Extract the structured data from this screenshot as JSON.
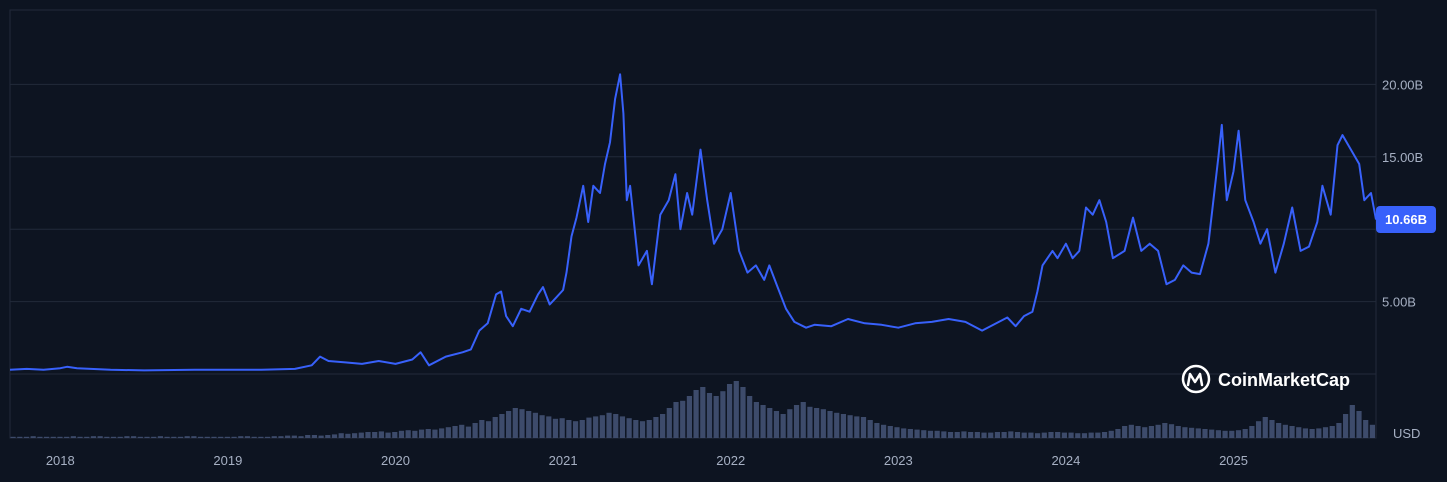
{
  "chart_data": {
    "type": "line",
    "currency_label": "USD",
    "last_value_label": "10.66B",
    "watermark": "CoinMarketCap",
    "x_ticks": [
      "2018",
      "2019",
      "2020",
      "2021",
      "2022",
      "2023",
      "2024",
      "2025"
    ],
    "y_ticks": [
      "5.00B",
      "10.00B",
      "15.00B",
      "20.00B"
    ],
    "y_tick_values": [
      5,
      10,
      15,
      20
    ],
    "ylim": [
      0,
      25
    ],
    "xlim": [
      2017.7,
      2025.85
    ],
    "grid": true,
    "colors": {
      "background": "#0d1421",
      "line": "#3861fb",
      "grid": "#222a3a",
      "axis_text": "#a6b0c3",
      "volume": "#3d4b6b",
      "tag": "#3861fb"
    },
    "series": [
      {
        "unit": "B USD",
        "points": [
          [
            2017.7,
            0.3
          ],
          [
            2017.8,
            0.35
          ],
          [
            2017.9,
            0.3
          ],
          [
            2018.0,
            0.4
          ],
          [
            2018.04,
            0.5
          ],
          [
            2018.1,
            0.4
          ],
          [
            2018.3,
            0.3
          ],
          [
            2018.5,
            0.25
          ],
          [
            2018.8,
            0.3
          ],
          [
            2019.0,
            0.3
          ],
          [
            2019.2,
            0.3
          ],
          [
            2019.4,
            0.35
          ],
          [
            2019.5,
            0.6
          ],
          [
            2019.55,
            1.2
          ],
          [
            2019.6,
            0.9
          ],
          [
            2019.7,
            0.8
          ],
          [
            2019.8,
            0.7
          ],
          [
            2019.9,
            0.9
          ],
          [
            2020.0,
            0.7
          ],
          [
            2020.1,
            1.0
          ],
          [
            2020.15,
            1.5
          ],
          [
            2020.2,
            0.6
          ],
          [
            2020.3,
            1.2
          ],
          [
            2020.4,
            1.5
          ],
          [
            2020.45,
            1.7
          ],
          [
            2020.5,
            3.0
          ],
          [
            2020.55,
            3.5
          ],
          [
            2020.6,
            5.5
          ],
          [
            2020.63,
            5.7
          ],
          [
            2020.66,
            4.0
          ],
          [
            2020.7,
            3.3
          ],
          [
            2020.75,
            4.5
          ],
          [
            2020.8,
            4.3
          ],
          [
            2020.85,
            5.5
          ],
          [
            2020.88,
            6.0
          ],
          [
            2020.92,
            4.8
          ],
          [
            2020.96,
            5.3
          ],
          [
            2021.0,
            5.8
          ],
          [
            2021.02,
            7.0
          ],
          [
            2021.05,
            9.5
          ],
          [
            2021.08,
            10.8
          ],
          [
            2021.12,
            13.0
          ],
          [
            2021.15,
            10.5
          ],
          [
            2021.18,
            13.0
          ],
          [
            2021.22,
            12.5
          ],
          [
            2021.25,
            14.5
          ],
          [
            2021.28,
            16.0
          ],
          [
            2021.31,
            19.0
          ],
          [
            2021.34,
            20.7
          ],
          [
            2021.36,
            18.0
          ],
          [
            2021.38,
            12.0
          ],
          [
            2021.4,
            13.0
          ],
          [
            2021.45,
            7.5
          ],
          [
            2021.5,
            8.5
          ],
          [
            2021.53,
            6.2
          ],
          [
            2021.58,
            11.0
          ],
          [
            2021.63,
            12.0
          ],
          [
            2021.67,
            13.8
          ],
          [
            2021.7,
            10.0
          ],
          [
            2021.74,
            12.5
          ],
          [
            2021.77,
            11.0
          ],
          [
            2021.82,
            15.5
          ],
          [
            2021.86,
            12.0
          ],
          [
            2021.9,
            9.0
          ],
          [
            2021.95,
            10.0
          ],
          [
            2022.0,
            12.5
          ],
          [
            2022.05,
            8.5
          ],
          [
            2022.1,
            7.0
          ],
          [
            2022.15,
            7.5
          ],
          [
            2022.2,
            6.5
          ],
          [
            2022.23,
            7.5
          ],
          [
            2022.28,
            6.0
          ],
          [
            2022.33,
            4.5
          ],
          [
            2022.38,
            3.6
          ],
          [
            2022.45,
            3.2
          ],
          [
            2022.5,
            3.4
          ],
          [
            2022.6,
            3.3
          ],
          [
            2022.7,
            3.8
          ],
          [
            2022.8,
            3.5
          ],
          [
            2022.9,
            3.4
          ],
          [
            2023.0,
            3.2
          ],
          [
            2023.1,
            3.5
          ],
          [
            2023.2,
            3.6
          ],
          [
            2023.3,
            3.8
          ],
          [
            2023.4,
            3.6
          ],
          [
            2023.5,
            3.0
          ],
          [
            2023.6,
            3.6
          ],
          [
            2023.65,
            3.9
          ],
          [
            2023.7,
            3.3
          ],
          [
            2023.75,
            4.0
          ],
          [
            2023.8,
            4.3
          ],
          [
            2023.83,
            5.7
          ],
          [
            2023.86,
            7.5
          ],
          [
            2023.92,
            8.5
          ],
          [
            2023.95,
            8.0
          ],
          [
            2024.0,
            9.0
          ],
          [
            2024.04,
            8.0
          ],
          [
            2024.08,
            8.5
          ],
          [
            2024.12,
            11.5
          ],
          [
            2024.16,
            11.0
          ],
          [
            2024.2,
            12.0
          ],
          [
            2024.24,
            10.5
          ],
          [
            2024.28,
            8.0
          ],
          [
            2024.35,
            8.5
          ],
          [
            2024.4,
            10.8
          ],
          [
            2024.45,
            8.5
          ],
          [
            2024.5,
            9.0
          ],
          [
            2024.55,
            8.5
          ],
          [
            2024.6,
            6.2
          ],
          [
            2024.65,
            6.5
          ],
          [
            2024.7,
            7.5
          ],
          [
            2024.75,
            7.0
          ],
          [
            2024.8,
            6.9
          ],
          [
            2024.85,
            9.0
          ],
          [
            2024.88,
            12.0
          ],
          [
            2024.91,
            15.0
          ],
          [
            2024.93,
            17.2
          ],
          [
            2024.96,
            12.0
          ],
          [
            2025.0,
            14.0
          ],
          [
            2025.03,
            16.8
          ],
          [
            2025.07,
            12.0
          ],
          [
            2025.12,
            10.5
          ],
          [
            2025.16,
            9.0
          ],
          [
            2025.2,
            10.0
          ],
          [
            2025.25,
            7.0
          ],
          [
            2025.3,
            9.0
          ],
          [
            2025.35,
            11.5
          ],
          [
            2025.4,
            8.5
          ],
          [
            2025.45,
            8.8
          ],
          [
            2025.5,
            10.5
          ],
          [
            2025.53,
            13.0
          ],
          [
            2025.58,
            11.0
          ],
          [
            2025.62,
            15.8
          ],
          [
            2025.65,
            16.5
          ],
          [
            2025.7,
            15.5
          ],
          [
            2025.75,
            14.5
          ],
          [
            2025.78,
            12.0
          ],
          [
            2025.82,
            12.5
          ],
          [
            2025.85,
            10.66
          ]
        ]
      }
    ],
    "volume_bars": [
      0.02,
      0.02,
      0.02,
      0.03,
      0.02,
      0.02,
      0.02,
      0.02,
      0.02,
      0.03,
      0.02,
      0.02,
      0.03,
      0.03,
      0.02,
      0.02,
      0.02,
      0.03,
      0.03,
      0.02,
      0.02,
      0.02,
      0.03,
      0.02,
      0.02,
      0.02,
      0.03,
      0.03,
      0.02,
      0.02,
      0.02,
      0.02,
      0.02,
      0.02,
      0.03,
      0.03,
      0.02,
      0.02,
      0.02,
      0.03,
      0.03,
      0.04,
      0.04,
      0.03,
      0.05,
      0.05,
      0.04,
      0.05,
      0.06,
      0.08,
      0.07,
      0.08,
      0.09,
      0.1,
      0.1,
      0.11,
      0.09,
      0.1,
      0.12,
      0.13,
      0.12,
      0.14,
      0.15,
      0.14,
      0.16,
      0.18,
      0.2,
      0.22,
      0.19,
      0.25,
      0.3,
      0.28,
      0.35,
      0.4,
      0.45,
      0.5,
      0.48,
      0.45,
      0.42,
      0.38,
      0.36,
      0.32,
      0.33,
      0.3,
      0.28,
      0.3,
      0.34,
      0.36,
      0.38,
      0.42,
      0.4,
      0.36,
      0.33,
      0.3,
      0.28,
      0.3,
      0.35,
      0.4,
      0.5,
      0.6,
      0.62,
      0.7,
      0.8,
      0.85,
      0.75,
      0.7,
      0.78,
      0.9,
      0.95,
      0.85,
      0.7,
      0.6,
      0.55,
      0.5,
      0.45,
      0.4,
      0.48,
      0.55,
      0.6,
      0.52,
      0.5,
      0.48,
      0.45,
      0.42,
      0.4,
      0.38,
      0.36,
      0.35,
      0.3,
      0.25,
      0.22,
      0.2,
      0.18,
      0.16,
      0.15,
      0.14,
      0.13,
      0.12,
      0.12,
      0.11,
      0.1,
      0.1,
      0.11,
      0.1,
      0.1,
      0.09,
      0.09,
      0.1,
      0.1,
      0.11,
      0.1,
      0.09,
      0.09,
      0.08,
      0.09,
      0.1,
      0.1,
      0.09,
      0.09,
      0.08,
      0.08,
      0.09,
      0.09,
      0.1,
      0.12,
      0.15,
      0.2,
      0.22,
      0.2,
      0.18,
      0.2,
      0.22,
      0.25,
      0.23,
      0.2,
      0.18,
      0.17,
      0.16,
      0.15,
      0.14,
      0.13,
      0.12,
      0.12,
      0.13,
      0.15,
      0.2,
      0.28,
      0.35,
      0.3,
      0.25,
      0.22,
      0.2,
      0.18,
      0.16,
      0.15,
      0.16,
      0.18,
      0.2,
      0.25,
      0.4,
      0.55,
      0.45,
      0.3,
      0.22
    ]
  }
}
